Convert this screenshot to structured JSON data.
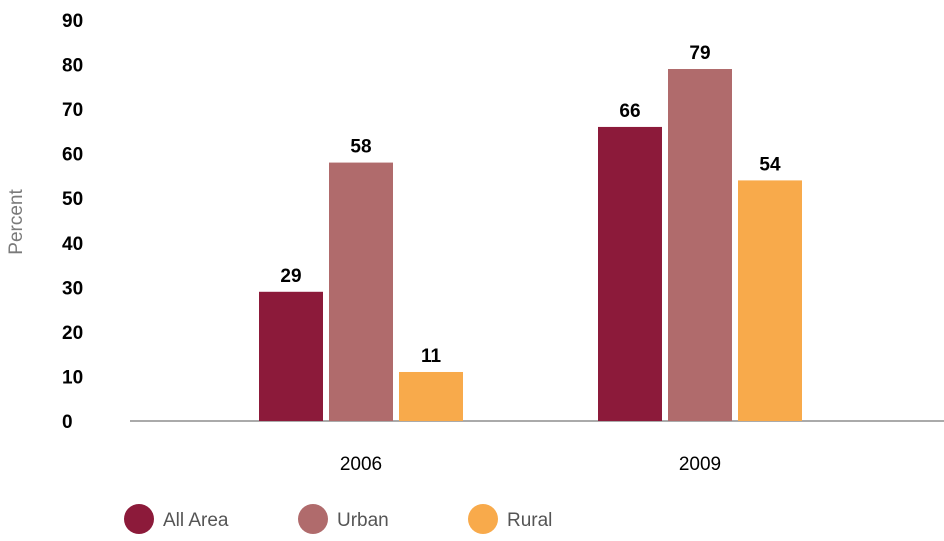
{
  "chart_data": {
    "type": "bar",
    "title": "",
    "xlabel": "",
    "ylabel": "Percent",
    "ylim": [
      0,
      90
    ],
    "yticks": [
      0,
      10,
      20,
      30,
      40,
      50,
      60,
      70,
      80,
      90
    ],
    "categories": [
      "2006",
      "2009"
    ],
    "series": [
      {
        "name": "All Area",
        "color": "#8c1a3a",
        "values": [
          29,
          66
        ]
      },
      {
        "name": "Urban",
        "color": "#b06b6c",
        "values": [
          58,
          79
        ]
      },
      {
        "name": "Rural",
        "color": "#f8aa4b",
        "values": [
          11,
          54
        ]
      }
    ],
    "grid": false,
    "legend_position": "bottom-left"
  }
}
